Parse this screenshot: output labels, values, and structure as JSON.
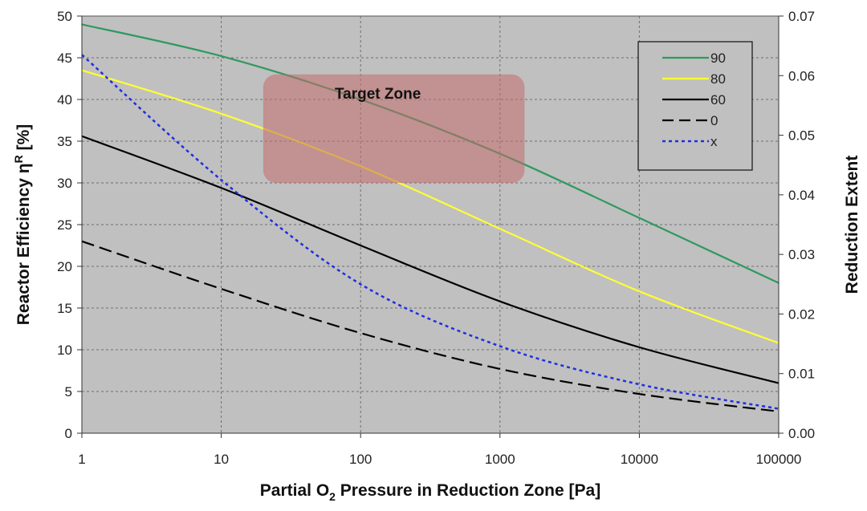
{
  "chart_data": {
    "type": "line",
    "x_scale": "log",
    "x_ticks": [
      1,
      10,
      100,
      1000,
      10000,
      100000
    ],
    "x_tick_labels": [
      "1",
      "10",
      "100",
      "1000",
      "10000",
      "100000"
    ],
    "xlim": [
      1,
      100000
    ],
    "xlabel": {
      "pre": "Partial O",
      "sub": "2",
      "post": " Pressure in Reduction Zone [Pa]"
    },
    "ylabel_left": {
      "pre": "Reactor Efficiency η",
      "sup": "R",
      "post": " [%]"
    },
    "ylabel_right": "Reduction Extent",
    "ylim_left": [
      0,
      50
    ],
    "y_ticks_left": [
      0,
      5,
      10,
      15,
      20,
      25,
      30,
      35,
      40,
      45,
      50
    ],
    "ylim_right": [
      0,
      0.07
    ],
    "y_ticks_right": [
      "0.00",
      "0.01",
      "0.02",
      "0.03",
      "0.04",
      "0.05",
      "0.06",
      "0.07"
    ],
    "grid": true,
    "legend_position": "top-right",
    "annotation": {
      "text": "Target Zone",
      "x_range": [
        20,
        1500
      ],
      "y_range": [
        30,
        43
      ]
    },
    "series": [
      {
        "name": "90",
        "axis": "left",
        "color": "#2e9960",
        "dash": "solid",
        "x": [
          1,
          10,
          100,
          1000,
          10000,
          100000
        ],
        "y": [
          49,
          45.2,
          40,
          33.5,
          25.8,
          18
        ]
      },
      {
        "name": "80",
        "axis": "left",
        "color": "#ffff33",
        "dash": "solid",
        "x": [
          1,
          10,
          100,
          1000,
          10000,
          100000
        ],
        "y": [
          43.5,
          38.3,
          32,
          24.5,
          17,
          10.8
        ]
      },
      {
        "name": "60",
        "axis": "left",
        "color": "#000000",
        "dash": "solid",
        "x": [
          1,
          10,
          100,
          1000,
          10000,
          100000
        ],
        "y": [
          35.6,
          29.4,
          22.5,
          15.8,
          10.3,
          6
        ]
      },
      {
        "name": "0",
        "axis": "left",
        "color": "#000000",
        "dash": "long-dash",
        "x": [
          1,
          10,
          100,
          1000,
          10000,
          100000
        ],
        "y": [
          23,
          17.3,
          12,
          7.7,
          4.7,
          2.6
        ]
      },
      {
        "name": "x",
        "axis": "right",
        "color": "#1f2fe0",
        "dash": "dotted",
        "x": [
          1,
          10,
          100,
          1000,
          10000,
          100000
        ],
        "y": [
          0.0635,
          0.0425,
          0.025,
          0.0146,
          0.0082,
          0.0041
        ]
      }
    ]
  }
}
